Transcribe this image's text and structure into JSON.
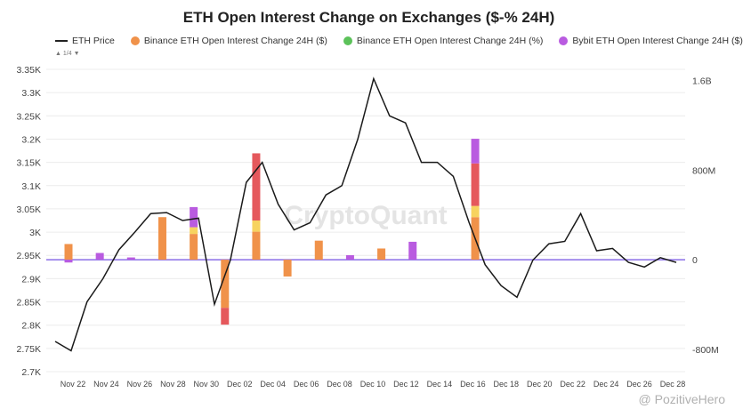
{
  "chart_data": {
    "type": "bar",
    "title": "ETH Open Interest Change on Exchanges ($-% 24H)",
    "legend_position": "top",
    "legend_pager": "1/4",
    "grid": true,
    "watermark": "CryptoQuant",
    "overlay_watermark": "@ PozitiveHero",
    "x_tick_labels": [
      "Nov 22",
      "Nov 24",
      "Nov 26",
      "Nov 28",
      "Nov 30",
      "Dec 02",
      "Dec 04",
      "Dec 06",
      "Dec 08",
      "Dec 10",
      "Dec 12",
      "Dec 14",
      "Dec 16",
      "Dec 18",
      "Dec 20",
      "Dec 22",
      "Dec 24",
      "Dec 26",
      "Dec 28"
    ],
    "y_left": {
      "range": [
        2700,
        3350
      ],
      "ticks": [
        2700,
        2750,
        2800,
        2850,
        2900,
        2950,
        3000,
        3050,
        3100,
        3150,
        3200,
        3250,
        3300,
        3350
      ],
      "tick_labels": [
        "2.7K",
        "2.75K",
        "2.8K",
        "2.85K",
        "2.9K",
        "2.95K",
        "3K",
        "3.05K",
        "3.1K",
        "3.15K",
        "3.2K",
        "3.25K",
        "3.3K",
        "3.35K"
      ]
    },
    "y_right": {
      "range": [
        -1000,
        1700
      ],
      "ticks": [
        -800,
        0,
        800,
        1600
      ],
      "tick_labels": [
        "-800M",
        "0",
        "800M",
        "1.6B"
      ]
    },
    "colors": {
      "eth_price": "#1a1a1a",
      "seg1": "#f0924a",
      "seg2": "#f7d35f",
      "seg3": "#e5585c",
      "seg4": "#b95be0",
      "zero_line": "#8a6ee8"
    },
    "legend": [
      {
        "label": "ETH Price",
        "marker": "line",
        "color": "#1a1a1a"
      },
      {
        "label": "Binance ETH Open Interest Change 24H ($)",
        "marker": "dot",
        "color": "#f0924a"
      },
      {
        "label": "Binance ETH Open Interest Change 24H (%)",
        "marker": "dot",
        "color": "#5cc25a"
      },
      {
        "label": "Bybit ETH Open Interest Change 24H ($)",
        "marker": "dot",
        "color": "#b95be0"
      }
    ],
    "eth_price": [
      2765,
      2745,
      2850,
      2900,
      2962,
      3000,
      3040,
      3042,
      3025,
      3030,
      2845,
      2940,
      3107,
      3150,
      3060,
      3005,
      3020,
      3080,
      3100,
      3200,
      3330,
      3250,
      3235,
      3150,
      3150,
      3120,
      3020,
      2930,
      2885,
      2860,
      2940,
      2975,
      2980,
      3040,
      2960,
      2965,
      2935,
      2925,
      2945,
      2935
    ],
    "bars": [
      [
        140,
        0,
        0,
        -25
      ],
      [
        0,
        0,
        0,
        60
      ],
      [
        0,
        0,
        0,
        20
      ],
      [
        380,
        0,
        0,
        0
      ],
      [
        230,
        60,
        0,
        180
      ],
      [
        -430,
        0,
        -150,
        0
      ],
      [
        250,
        100,
        600,
        0
      ],
      [
        -150,
        0,
        0,
        0
      ],
      [
        170,
        0,
        0,
        0
      ],
      [
        0,
        0,
        0,
        40
      ],
      [
        100,
        0,
        0,
        0
      ],
      [
        0,
        0,
        0,
        160
      ],
      [
        0,
        0,
        0,
        0
      ],
      [
        380,
        100,
        380,
        220
      ],
      [
        0,
        0,
        0,
        0
      ],
      [
        0,
        0,
        0,
        0
      ],
      [
        0,
        0,
        0,
        0
      ],
      [
        0,
        0,
        0,
        0
      ],
      [
        0,
        0,
        0,
        0
      ],
      [
        0,
        0,
        0,
        0
      ]
    ]
  }
}
